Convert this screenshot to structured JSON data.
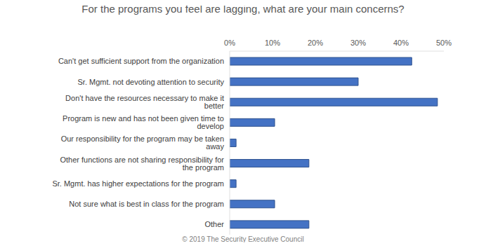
{
  "chart_data": {
    "type": "bar",
    "title": "For the programs you feel are lagging, what are your main concerns?",
    "orientation": "horizontal",
    "categories": [
      "Can't get sufficient support from the organization",
      "Sr. Mgmt. not devoting attention to security",
      "Don't have the resources necessary to make it better",
      "Program is new and has not been given time to develop",
      "Our responsibility for the program may be taken away",
      "Other functions are not sharing responsibility for the program",
      "Sr. Mgmt. has higher expectations for the program",
      "Not sure what is best in class for the program",
      "Other"
    ],
    "values": [
      42.5,
      30,
      48.5,
      10.5,
      1.5,
      18.5,
      1.5,
      10.5,
      18.5
    ],
    "color": "#4472c4",
    "xlim": [
      0,
      50
    ],
    "xticks": [
      {
        "value": 0,
        "label": "0%"
      },
      {
        "value": 10,
        "label": "10%"
      },
      {
        "value": 20,
        "label": "20%"
      },
      {
        "value": 30,
        "label": "30%"
      },
      {
        "value": 40,
        "label": "40%"
      },
      {
        "value": 50,
        "label": "50%"
      }
    ],
    "grid": false,
    "annotations": [
      "© 2019 The Security Executive Council"
    ]
  }
}
